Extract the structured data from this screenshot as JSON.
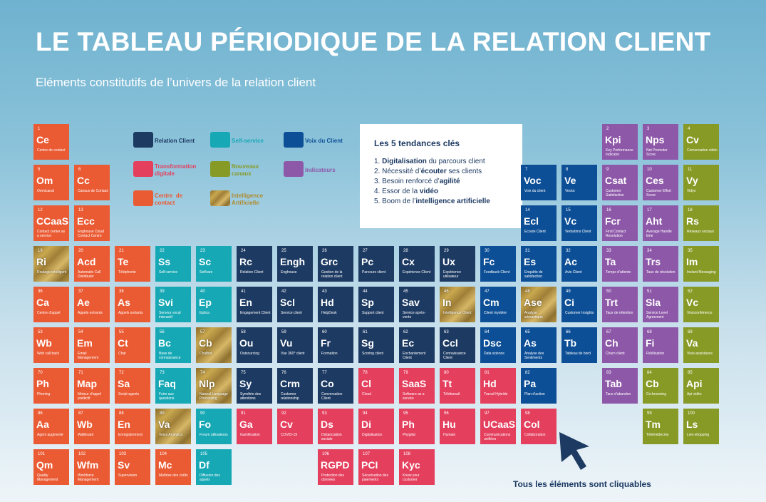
{
  "header": {
    "title": "LE TABLEAU PÉRIODIQUE DE LA RELATION CLIENT",
    "subtitle": "Eléments constitutifs de l’univers de la relation client"
  },
  "colors": {
    "relation_client": "#1d3a62",
    "self_service": "#16a8b5",
    "voix_du_client": "#0d4f96",
    "transformation_digitale": "#e43f5d",
    "nouveaux_canaux": "#879a26",
    "indicateurs": "#8e58a9",
    "centre_de_contact": "#ea5a33",
    "intelligence_artificielle": "#c9a84f"
  },
  "legend": [
    {
      "key": "navy",
      "label": "Relation Client",
      "text_color": "#1d3a62"
    },
    {
      "key": "teal",
      "label": "Self-service",
      "text_color": "#16a8b5"
    },
    {
      "key": "blue",
      "label": "Voix du Client",
      "text_color": "#0d4f96"
    },
    {
      "key": "pink",
      "label": "Transformation\ndigitale",
      "text_color": "#e43f5d"
    },
    {
      "key": "olive",
      "label": "Nouveaux\ncanaux",
      "text_color": "#879a26"
    },
    {
      "key": "purple",
      "label": "Indicateurs",
      "text_color": "#8e58a9"
    },
    {
      "key": "orange",
      "label": "Centre  de\ncontact",
      "text_color": "#ea5a33"
    },
    {
      "key": "gold",
      "label": "Intelligence\nArtificielle",
      "text_color": "#b08a2e"
    }
  ],
  "trends": {
    "title": "Les 5 tendances clés",
    "items": [
      {
        "pre": "1. ",
        "bold": "Digitalisation",
        "post": " du parcours client"
      },
      {
        "pre": "2. Nécessité d’",
        "bold": "écouter",
        "post": " ses clients"
      },
      {
        "pre": "3. Besoin renforcé d’",
        "bold": "agilité",
        "post": ""
      },
      {
        "pre": "4. Essor de la ",
        "bold": "vidéo",
        "post": ""
      },
      {
        "pre": "5. Boom de l’",
        "bold": "intelligence artificielle",
        "post": ""
      }
    ]
  },
  "footnote": "Tous les éléments sont cliquables",
  "elements": [
    {
      "n": "1",
      "s": "Ce",
      "name": "Centre de contact",
      "c": "orange",
      "col": 0,
      "row": 0
    },
    {
      "n": "5",
      "s": "Om",
      "name": "Omnicanal",
      "c": "orange",
      "col": 0,
      "row": 1
    },
    {
      "n": "6",
      "s": "Cc",
      "name": "Canaux de Contact",
      "c": "orange",
      "col": 1,
      "row": 1
    },
    {
      "n": "12",
      "s": "CCaaS",
      "name": "Contact center as a service",
      "c": "orange",
      "col": 0,
      "row": 2
    },
    {
      "n": "13",
      "s": "Ecc",
      "name": "Enghouse Cloud Contact Centre",
      "c": "orange",
      "col": 1,
      "row": 2
    },
    {
      "n": "19",
      "s": "Ri",
      "name": "Routage intelligent",
      "c": "gold",
      "col": 0,
      "row": 3
    },
    {
      "n": "20",
      "s": "Acd",
      "name": "Automatic Call Distributor",
      "c": "orange",
      "col": 1,
      "row": 3
    },
    {
      "n": "21",
      "s": "Te",
      "name": "Téléphonie",
      "c": "orange",
      "col": 2,
      "row": 3
    },
    {
      "n": "22",
      "s": "Ss",
      "name": "Self-service",
      "c": "teal",
      "col": 3,
      "row": 3
    },
    {
      "n": "23",
      "s": "Sc",
      "name": "Selfcare",
      "c": "teal",
      "col": 4,
      "row": 3
    },
    {
      "n": "24",
      "s": "Rc",
      "name": "Relation Client",
      "c": "navy",
      "col": 5,
      "row": 3
    },
    {
      "n": "25",
      "s": "Engh",
      "name": "Enghouse",
      "c": "navy",
      "col": 6,
      "row": 3
    },
    {
      "n": "26",
      "s": "Grc",
      "name": "Gestion de la relation client",
      "c": "navy",
      "col": 7,
      "row": 3
    },
    {
      "n": "27",
      "s": "Pc",
      "name": "Parcours client",
      "c": "navy",
      "col": 8,
      "row": 3
    },
    {
      "n": "28",
      "s": "Cx",
      "name": "Expérience Client",
      "c": "navy",
      "col": 9,
      "row": 3
    },
    {
      "n": "29",
      "s": "Ux",
      "name": "Expérience utilisateur",
      "c": "navy",
      "col": 10,
      "row": 3
    },
    {
      "n": "30",
      "s": "Fc",
      "name": "Feedback Client",
      "c": "blue",
      "col": 11,
      "row": 3
    },
    {
      "n": "31",
      "s": "Es",
      "name": "Enquête de satisfaction",
      "c": "blue",
      "col": 12,
      "row": 3
    },
    {
      "n": "32",
      "s": "Ac",
      "name": "Avis Client",
      "c": "blue",
      "col": 13,
      "row": 3
    },
    {
      "n": "33",
      "s": "Ta",
      "name": "Temps d’attente",
      "c": "purple",
      "col": 14,
      "row": 3
    },
    {
      "n": "34",
      "s": "Trs",
      "name": "Taux de résolution",
      "c": "purple",
      "col": 15,
      "row": 3
    },
    {
      "n": "35",
      "s": "Im",
      "name": "Instant Messaging",
      "c": "olive",
      "col": 16,
      "row": 3
    },
    {
      "n": "36",
      "s": "Ca",
      "name": "Centre d’appel",
      "c": "orange",
      "col": 0,
      "row": 4
    },
    {
      "n": "37",
      "s": "Ae",
      "name": "Appels entrants",
      "c": "orange",
      "col": 1,
      "row": 4
    },
    {
      "n": "38",
      "s": "As",
      "name": "Appels sortants",
      "c": "orange",
      "col": 2,
      "row": 4
    },
    {
      "n": "39",
      "s": "Svi",
      "name": "Serveur vocal interactif",
      "c": "teal",
      "col": 3,
      "row": 4
    },
    {
      "n": "40",
      "s": "Ep",
      "name": "Eptica",
      "c": "teal",
      "col": 4,
      "row": 4
    },
    {
      "n": "41",
      "s": "En",
      "name": "Engagement Client",
      "c": "navy",
      "col": 5,
      "row": 4
    },
    {
      "n": "42",
      "s": "Scl",
      "name": "Service client",
      "c": "navy",
      "col": 6,
      "row": 4
    },
    {
      "n": "43",
      "s": "Hd",
      "name": "HelpDesk",
      "c": "navy",
      "col": 7,
      "row": 4
    },
    {
      "n": "44",
      "s": "Sp",
      "name": "Support client",
      "c": "navy",
      "col": 8,
      "row": 4
    },
    {
      "n": "45",
      "s": "Sav",
      "name": "Service après-vente",
      "c": "navy",
      "col": 9,
      "row": 4
    },
    {
      "n": "46",
      "s": "In",
      "name": "Intelligence Client",
      "c": "gold",
      "col": 10,
      "row": 4
    },
    {
      "n": "47",
      "s": "Cm",
      "name": "Client mystère",
      "c": "blue",
      "col": 11,
      "row": 4
    },
    {
      "n": "48",
      "s": "Ase",
      "name": "Analyse sémantique",
      "c": "gold",
      "col": 12,
      "row": 4
    },
    {
      "n": "49",
      "s": "Ci",
      "name": "Customer Insights",
      "c": "blue",
      "col": 13,
      "row": 4
    },
    {
      "n": "50",
      "s": "Trt",
      "name": "Taux de rétention",
      "c": "purple",
      "col": 14,
      "row": 4
    },
    {
      "n": "51",
      "s": "Sla",
      "name": "Service Level Agreement",
      "c": "purple",
      "col": 15,
      "row": 4
    },
    {
      "n": "52",
      "s": "Vc",
      "name": "Visioconférence",
      "c": "olive",
      "col": 16,
      "row": 4
    },
    {
      "n": "53",
      "s": "Wb",
      "name": "Web call back",
      "c": "orange",
      "col": 0,
      "row": 5
    },
    {
      "n": "54",
      "s": "Em",
      "name": "Email Management",
      "c": "orange",
      "col": 1,
      "row": 5
    },
    {
      "n": "55",
      "s": "Ct",
      "name": "Chat",
      "c": "orange",
      "col": 2,
      "row": 5
    },
    {
      "n": "56",
      "s": "Bc",
      "name": "Base de connaissance",
      "c": "teal",
      "col": 3,
      "row": 5
    },
    {
      "n": "57",
      "s": "Cb",
      "name": "Chatbot",
      "c": "gold",
      "col": 4,
      "row": 5
    },
    {
      "n": "58",
      "s": "Ou",
      "name": "Outsourcing",
      "c": "navy",
      "col": 5,
      "row": 5
    },
    {
      "n": "59",
      "s": "Vu",
      "name": "Vue 360° client",
      "c": "navy",
      "col": 6,
      "row": 5
    },
    {
      "n": "60",
      "s": "Fr",
      "name": "Formation",
      "c": "navy",
      "col": 7,
      "row": 5
    },
    {
      "n": "61",
      "s": "Sg",
      "name": "Scoring client",
      "c": "navy",
      "col": 8,
      "row": 5
    },
    {
      "n": "62",
      "s": "Ec",
      "name": "Enchantement Client",
      "c": "navy",
      "col": 9,
      "row": 5
    },
    {
      "n": "63",
      "s": "Ccl",
      "name": "Connaissance Client",
      "c": "navy",
      "col": 10,
      "row": 5
    },
    {
      "n": "64",
      "s": "Dsc",
      "name": "Data science",
      "c": "blue",
      "col": 11,
      "row": 5
    },
    {
      "n": "65",
      "s": "As",
      "name": "Analyse des Sentiments",
      "c": "blue",
      "col": 12,
      "row": 5
    },
    {
      "n": "66",
      "s": "Tb",
      "name": "Tableau de bord",
      "c": "blue",
      "col": 13,
      "row": 5
    },
    {
      "n": "67",
      "s": "Ch",
      "name": "Churn client",
      "c": "purple",
      "col": 14,
      "row": 5
    },
    {
      "n": "68",
      "s": "Fi",
      "name": "Fidélisation",
      "c": "purple",
      "col": 15,
      "row": 5
    },
    {
      "n": "69",
      "s": "Va",
      "name": "Visio-assistance",
      "c": "olive",
      "col": 16,
      "row": 5
    },
    {
      "n": "70",
      "s": "Ph",
      "name": "Phoning",
      "c": "orange",
      "col": 0,
      "row": 6
    },
    {
      "n": "71",
      "s": "Map",
      "name": "Moteur d’appel prédictif",
      "c": "orange",
      "col": 1,
      "row": 6
    },
    {
      "n": "72",
      "s": "Sa",
      "name": "Script agents",
      "c": "orange",
      "col": 2,
      "row": 6
    },
    {
      "n": "73",
      "s": "Faq",
      "name": "Foire aux questions",
      "c": "teal",
      "col": 3,
      "row": 6
    },
    {
      "n": "74",
      "s": "Nlp",
      "name": "Natural Language Processing",
      "c": "gold",
      "col": 4,
      "row": 6
    },
    {
      "n": "75",
      "s": "Sy",
      "name": "Symétrie des attentions",
      "c": "navy",
      "col": 5,
      "row": 6
    },
    {
      "n": "76",
      "s": "Crm",
      "name": "Customer relationship",
      "c": "navy",
      "col": 6,
      "row": 6
    },
    {
      "n": "77",
      "s": "Co",
      "name": "Conversation Client",
      "c": "navy",
      "col": 7,
      "row": 6
    },
    {
      "n": "78",
      "s": "Cl",
      "name": "Cloud",
      "c": "pink",
      "col": 8,
      "row": 6
    },
    {
      "n": "79",
      "s": "SaaS",
      "name": "Software as a service",
      "c": "pink",
      "col": 9,
      "row": 6
    },
    {
      "n": "80",
      "s": "Tt",
      "name": "Télétravail",
      "c": "pink",
      "col": 10,
      "row": 6
    },
    {
      "n": "81",
      "s": "Hd",
      "name": "Travail Hybride",
      "c": "pink",
      "col": 11,
      "row": 6
    },
    {
      "n": "82",
      "s": "Pa",
      "name": "Plan d’action",
      "c": "blue",
      "col": 12,
      "row": 6
    },
    {
      "n": "83",
      "s": "Tab",
      "name": "Taux d’abandon",
      "c": "purple",
      "col": 14,
      "row": 6
    },
    {
      "n": "84",
      "s": "Cb",
      "name": "Co-browsing",
      "c": "olive",
      "col": 15,
      "row": 6
    },
    {
      "n": "85",
      "s": "Api",
      "name": "Api vidéo",
      "c": "olive",
      "col": 16,
      "row": 6
    },
    {
      "n": "86",
      "s": "Aa",
      "name": "Agent augmenté",
      "c": "orange",
      "col": 0,
      "row": 7
    },
    {
      "n": "87",
      "s": "Wb",
      "name": "Wallboard",
      "c": "orange",
      "col": 1,
      "row": 7
    },
    {
      "n": "88",
      "s": "En",
      "name": "Enregistrement",
      "c": "orange",
      "col": 2,
      "row": 7
    },
    {
      "n": "89",
      "s": "Va",
      "name": "Voice Analytics",
      "c": "gold",
      "col": 3,
      "row": 7
    },
    {
      "n": "90",
      "s": "Fo",
      "name": "Forum utilisateurs",
      "c": "teal",
      "col": 4,
      "row": 7
    },
    {
      "n": "91",
      "s": "Ga",
      "name": "Gamification",
      "c": "pink",
      "col": 5,
      "row": 7
    },
    {
      "n": "92",
      "s": "Cv",
      "name": "COVID-19",
      "c": "pink",
      "col": 6,
      "row": 7
    },
    {
      "n": "93",
      "s": "Ds",
      "name": "Distanciation sociale",
      "c": "pink",
      "col": 7,
      "row": 7
    },
    {
      "n": "94",
      "s": "Di",
      "name": "Digitalisation",
      "c": "pink",
      "col": 8,
      "row": 7
    },
    {
      "n": "95",
      "s": "Ph",
      "name": "Phygital",
      "c": "pink",
      "col": 9,
      "row": 7
    },
    {
      "n": "96",
      "s": "Hu",
      "name": "Humain",
      "c": "pink",
      "col": 10,
      "row": 7
    },
    {
      "n": "97",
      "s": "UCaaS",
      "name": "Communications unifiées",
      "c": "pink",
      "col": 11,
      "row": 7
    },
    {
      "n": "98",
      "s": "Col",
      "name": "Collaboration",
      "c": "pink",
      "col": 12,
      "row": 7
    },
    {
      "n": "99",
      "s": "Tm",
      "name": "Télémédecine",
      "c": "olive",
      "col": 15,
      "row": 7
    },
    {
      "n": "100",
      "s": "Ls",
      "name": "Live-shopping",
      "c": "olive",
      "col": 16,
      "row": 7
    },
    {
      "n": "101",
      "s": "Qm",
      "name": "Quality Management",
      "c": "orange",
      "col": 0,
      "row": 8
    },
    {
      "n": "102",
      "s": "Wfm",
      "name": "Workforce Management",
      "c": "orange",
      "col": 1,
      "row": 8
    },
    {
      "n": "103",
      "s": "Sv",
      "name": "Supervision",
      "c": "orange",
      "col": 2,
      "row": 8
    },
    {
      "n": "104",
      "s": "Mc",
      "name": "Maîtrise des coûts",
      "c": "orange",
      "col": 3,
      "row": 8
    },
    {
      "n": "105",
      "s": "Df",
      "name": "Diffusion des appels",
      "c": "teal",
      "col": 4,
      "row": 8
    },
    {
      "n": "106",
      "s": "RGPD",
      "name": "Protection des données",
      "c": "pink",
      "col": 7,
      "row": 8
    },
    {
      "n": "107",
      "s": "PCI",
      "name": "Sécurisation des paiements",
      "c": "pink",
      "col": 8,
      "row": 8
    },
    {
      "n": "108",
      "s": "Kyc",
      "name": "Know your customer",
      "c": "pink",
      "col": 9,
      "row": 8
    },
    {
      "n": "2",
      "s": "Kpi",
      "name": "Key Performance Indicator",
      "c": "purple",
      "col": 14,
      "row": 0
    },
    {
      "n": "3",
      "s": "Nps",
      "name": "Net Promoter Score",
      "c": "purple",
      "col": 15,
      "row": 0
    },
    {
      "n": "4",
      "s": "Cv",
      "name": "Conversation vidéo",
      "c": "olive",
      "col": 16,
      "row": 0
    },
    {
      "n": "7",
      "s": "Voc",
      "name": "Voix du client",
      "c": "blue",
      "col": 12,
      "row": 1
    },
    {
      "n": "8",
      "s": "Ve",
      "name": "Vecko",
      "c": "blue",
      "col": 13,
      "row": 1
    },
    {
      "n": "9",
      "s": "Csat",
      "name": "Customer Satisfaction",
      "c": "purple",
      "col": 14,
      "row": 1
    },
    {
      "n": "10",
      "s": "Ces",
      "name": "Customer Effort Score",
      "c": "purple",
      "col": 15,
      "row": 1
    },
    {
      "n": "11",
      "s": "Vy",
      "name": "Vidyo",
      "c": "olive",
      "col": 16,
      "row": 1
    },
    {
      "n": "14",
      "s": "Ecl",
      "name": "Ecoute Client",
      "c": "blue",
      "col": 12,
      "row": 2
    },
    {
      "n": "15",
      "s": "Vc",
      "name": "Verbatims Client",
      "c": "blue",
      "col": 13,
      "row": 2
    },
    {
      "n": "16",
      "s": "Fcr",
      "name": "First Contact Resolution",
      "c": "purple",
      "col": 14,
      "row": 2
    },
    {
      "n": "17",
      "s": "Aht",
      "name": "Average Handle time",
      "c": "purple",
      "col": 15,
      "row": 2
    },
    {
      "n": "18",
      "s": "Rs",
      "name": "Réseaux sociaux",
      "c": "olive",
      "col": 16,
      "row": 2
    }
  ]
}
